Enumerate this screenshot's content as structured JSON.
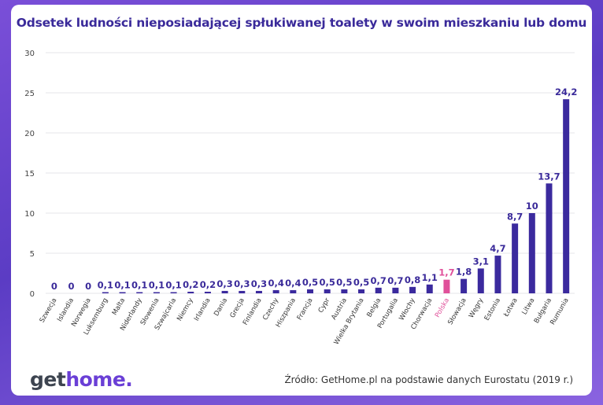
{
  "chart_data": {
    "type": "bar",
    "title": "Odsetek ludności nieposiadającej spłukiwanej toalety w swoim mieszkaniu lub domu",
    "categories": [
      "Szwecja",
      "Islandia",
      "Norwegia",
      "Luksemburg",
      "Malta",
      "Niderlandy",
      "Słowenia",
      "Szwajcaria",
      "Niemcy",
      "Irlandia",
      "Dania",
      "Grecja",
      "Finlandia",
      "Czechy",
      "Hiszpania",
      "Francja",
      "Cypr",
      "Austria",
      "Wielka Brytania",
      "Belgia",
      "Portugalia",
      "Włochy",
      "Chorwacja",
      "Polska",
      "Słowacja",
      "Węgry",
      "Estonia",
      "Łotwa",
      "Litwa",
      "Bułgaria",
      "Rumunia"
    ],
    "values": [
      0,
      0,
      0,
      0.1,
      0.1,
      0.1,
      0.1,
      0.1,
      0.2,
      0.2,
      0.3,
      0.3,
      0.3,
      0.4,
      0.4,
      0.5,
      0.5,
      0.5,
      0.5,
      0.7,
      0.7,
      0.8,
      1.1,
      1.7,
      1.8,
      3.1,
      4.7,
      8.7,
      10,
      13.7,
      24.2
    ],
    "value_labels": [
      "0",
      "0",
      "0",
      "0,1",
      "0,1",
      "0,1",
      "0,1",
      "0,1",
      "0,2",
      "0,2",
      "0,3",
      "0,3",
      "0,3",
      "0,4",
      "0,4",
      "0,5",
      "0,5",
      "0,5",
      "0,5",
      "0,7",
      "0,7",
      "0,8",
      "1,1",
      "1,7",
      "1,8",
      "3,1",
      "4,7",
      "8,7",
      "10",
      "13,7",
      "24,2"
    ],
    "highlight": "Polska",
    "ylim": [
      0,
      30
    ],
    "yticks": [
      "0",
      "5",
      "10",
      "15",
      "20",
      "25",
      "30"
    ],
    "grid": true,
    "legend": "none",
    "colors": {
      "bar": "#3b2a9e",
      "highlight": "#e0509a",
      "label": "#3a2a9a"
    }
  },
  "footer": {
    "logo_get": "get",
    "logo_home": "home.",
    "source": "Źródło: GetHome.pl na podstawie danych Eurostatu (2019 r.)"
  }
}
